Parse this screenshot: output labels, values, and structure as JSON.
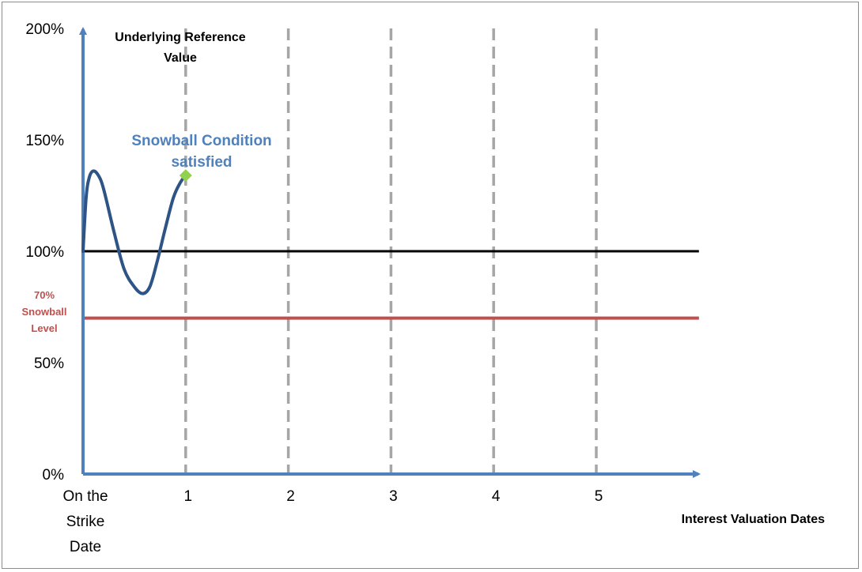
{
  "chart_data": {
    "type": "line",
    "y_axis": {
      "label_lines": [
        "Underlying Reference",
        "Value"
      ],
      "ticks": [
        {
          "value": 0,
          "label": "0%"
        },
        {
          "value": 50,
          "label": "50%"
        },
        {
          "value": 100,
          "label": "100%"
        },
        {
          "value": 150,
          "label": "150%"
        },
        {
          "value": 200,
          "label": "200%"
        }
      ],
      "ylim": [
        0,
        200
      ]
    },
    "x_axis": {
      "label": "Interest Valuation Dates",
      "ticks": [
        {
          "value": 0,
          "lines": [
            "On the",
            "Strike",
            "Date"
          ]
        },
        {
          "value": 1,
          "lines": [
            "1"
          ]
        },
        {
          "value": 2,
          "lines": [
            "2"
          ]
        },
        {
          "value": 3,
          "lines": [
            "3"
          ]
        },
        {
          "value": 4,
          "lines": [
            "4"
          ]
        },
        {
          "value": 5,
          "lines": [
            "5"
          ]
        }
      ],
      "xlim": [
        0,
        6
      ]
    },
    "reference_lines": [
      {
        "name": "initial",
        "value": 100,
        "color": "#000000"
      },
      {
        "name": "snowball-level",
        "value": 70,
        "color": "#c0504d",
        "label_lines": [
          "70%",
          "Snowball",
          "Level"
        ]
      }
    ],
    "series": [
      {
        "color": "#2e5486",
        "x": [
          0,
          0.03,
          0.06,
          0.1,
          0.15,
          0.2,
          0.3,
          0.4,
          0.5,
          0.58,
          0.65,
          0.72,
          0.8,
          0.88,
          0.95,
          1.0
        ],
        "y": [
          100,
          124,
          133,
          136,
          134,
          128,
          109,
          92,
          84,
          81,
          84,
          95,
          110,
          124,
          131,
          134
        ]
      }
    ],
    "annotation": {
      "lines": [
        "Snowball Condition",
        "satisfied"
      ],
      "x": 1,
      "y": 134,
      "marker_color": "#92d050",
      "text_color": "#4f81bd"
    },
    "axis_color": "#4f81bd",
    "valuation_line_color": "#a6a6a6"
  }
}
